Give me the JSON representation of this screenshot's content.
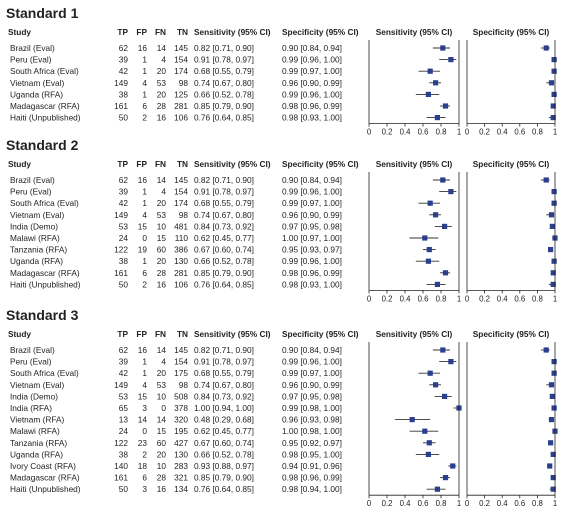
{
  "chart_data": [
    {
      "type": "forest",
      "title": "Standard 1",
      "columns": [
        "Study",
        "TP",
        "FP",
        "FN",
        "TN",
        "Sensitivity (95% CI)",
        "Specificity (95% CI)",
        "Sensitivity (95% CI)",
        "Specificity (95% CI)"
      ],
      "sens_axis": {
        "ticks": [
          "0",
          "0.2",
          "0.4",
          "0.6",
          "0.8",
          "1"
        ],
        "range": [
          0,
          1
        ]
      },
      "spec_axis": {
        "ticks": [
          "0",
          "0.2",
          "0.4",
          "0.6",
          "0.8",
          "1"
        ],
        "range": [
          0,
          1
        ]
      },
      "rows": [
        {
          "study": "Brazil (Eval)",
          "tp": 62,
          "fp": 16,
          "fn": 14,
          "tn": 145,
          "sens": [
            0.82,
            0.71,
            0.9
          ],
          "spec": [
            0.9,
            0.84,
            0.94
          ],
          "sens_text": "0.82 [0.71, 0.90]",
          "spec_text": "0.90 [0.84, 0.94]"
        },
        {
          "study": "Peru (Eval)",
          "tp": 39,
          "fp": 1,
          "fn": 4,
          "tn": 154,
          "sens": [
            0.91,
            0.78,
            0.97
          ],
          "spec": [
            0.99,
            0.96,
            1.0
          ],
          "sens_text": "0.91 [0.78, 0.97]",
          "spec_text": "0.99 [0.96, 1.00]"
        },
        {
          "study": "South Africa (Eval)",
          "tp": 42,
          "fp": 1,
          "fn": 20,
          "tn": 174,
          "sens": [
            0.68,
            0.55,
            0.79
          ],
          "spec": [
            0.99,
            0.97,
            1.0
          ],
          "sens_text": "0.68 [0.55, 0.79]",
          "spec_text": "0.99 [0.97, 1.00]"
        },
        {
          "study": "Vietnam (Eval)",
          "tp": 149,
          "fp": 4,
          "fn": 53,
          "tn": 98,
          "sens": [
            0.74,
            0.67,
            0.8
          ],
          "spec": [
            0.96,
            0.9,
            0.99
          ],
          "sens_text": "0.74 [0.67, 0.80]",
          "spec_text": "0.96 [0.90, 0.99]"
        },
        {
          "study": "Uganda (RFA)",
          "tp": 38,
          "fp": 1,
          "fn": 20,
          "tn": 125,
          "sens": [
            0.66,
            0.52,
            0.78
          ],
          "spec": [
            0.99,
            0.96,
            1.0
          ],
          "sens_text": "0.66 [0.52, 0.78]",
          "spec_text": "0.99 [0.96, 1.00]"
        },
        {
          "study": "Madagascar (RFA)",
          "tp": 161,
          "fp": 6,
          "fn": 28,
          "tn": 281,
          "sens": [
            0.85,
            0.79,
            0.9
          ],
          "spec": [
            0.98,
            0.96,
            0.99
          ],
          "sens_text": "0.85 [0.79, 0.90]",
          "spec_text": "0.98 [0.96, 0.99]"
        },
        {
          "study": "Haiti (Unpublished)",
          "tp": 50,
          "fp": 2,
          "fn": 16,
          "tn": 106,
          "sens": [
            0.76,
            0.64,
            0.85
          ],
          "spec": [
            0.98,
            0.93,
            1.0
          ],
          "sens_text": "0.76 [0.64, 0.85]",
          "spec_text": "0.98 [0.93, 1.00]"
        }
      ]
    },
    {
      "type": "forest",
      "title": "Standard 2",
      "columns": [
        "Study",
        "TP",
        "FP",
        "FN",
        "TN",
        "Sensitivity (95% CI)",
        "Specificity (95% CI)",
        "Sensitivity (95% CI)",
        "Specificity (95% CI)"
      ],
      "sens_axis": {
        "ticks": [
          "0",
          "0.2",
          "0.4",
          "0.6",
          "0.8",
          "1"
        ],
        "range": [
          0,
          1
        ]
      },
      "spec_axis": {
        "ticks": [
          "0",
          "0.2",
          "0.4",
          "0.6",
          "0.8",
          "1"
        ],
        "range": [
          0,
          1
        ]
      },
      "rows": [
        {
          "study": "Brazil (Eval)",
          "tp": 62,
          "fp": 16,
          "fn": 14,
          "tn": 145,
          "sens": [
            0.82,
            0.71,
            0.9
          ],
          "spec": [
            0.9,
            0.84,
            0.94
          ],
          "sens_text": "0.82 [0.71, 0.90]",
          "spec_text": "0.90 [0.84, 0.94]"
        },
        {
          "study": "Peru (Eval)",
          "tp": 39,
          "fp": 1,
          "fn": 4,
          "tn": 154,
          "sens": [
            0.91,
            0.78,
            0.97
          ],
          "spec": [
            0.99,
            0.96,
            1.0
          ],
          "sens_text": "0.91 [0.78, 0.97]",
          "spec_text": "0.99 [0.96, 1.00]"
        },
        {
          "study": "South Africa (Eval)",
          "tp": 42,
          "fp": 1,
          "fn": 20,
          "tn": 174,
          "sens": [
            0.68,
            0.55,
            0.79
          ],
          "spec": [
            0.99,
            0.97,
            1.0
          ],
          "sens_text": "0.68 [0.55, 0.79]",
          "spec_text": "0.99 [0.97, 1.00]"
        },
        {
          "study": "Vietnam (Eval)",
          "tp": 149,
          "fp": 4,
          "fn": 53,
          "tn": 98,
          "sens": [
            0.74,
            0.67,
            0.8
          ],
          "spec": [
            0.96,
            0.9,
            0.99
          ],
          "sens_text": "0.74 [0.67, 0.80]",
          "spec_text": "0.96 [0.90, 0.99]"
        },
        {
          "study": "India (Demo)",
          "tp": 53,
          "fp": 15,
          "fn": 10,
          "tn": 481,
          "sens": [
            0.84,
            0.73,
            0.92
          ],
          "spec": [
            0.97,
            0.95,
            0.98
          ],
          "sens_text": "0.84 [0.73, 0.92]",
          "spec_text": "0.97 [0.95, 0.98]"
        },
        {
          "study": "Malawi (RFA)",
          "tp": 24,
          "fp": 0,
          "fn": 15,
          "tn": 110,
          "sens": [
            0.62,
            0.45,
            0.77
          ],
          "spec": [
            1.0,
            0.97,
            1.0
          ],
          "sens_text": "0.62 [0.45, 0.77]",
          "spec_text": "1.00 [0.97, 1.00]"
        },
        {
          "study": "Tanzania (RFA)",
          "tp": 122,
          "fp": 19,
          "fn": 60,
          "tn": 386,
          "sens": [
            0.67,
            0.6,
            0.74
          ],
          "spec": [
            0.95,
            0.93,
            0.97
          ],
          "sens_text": "0.67 [0.60, 0.74]",
          "spec_text": "0.95 [0.93, 0.97]"
        },
        {
          "study": "Uganda (RFA)",
          "tp": 38,
          "fp": 1,
          "fn": 20,
          "tn": 130,
          "sens": [
            0.66,
            0.52,
            0.78
          ],
          "spec": [
            0.99,
            0.96,
            1.0
          ],
          "sens_text": "0.66 [0.52, 0.78]",
          "spec_text": "0.99 [0.96, 1.00]"
        },
        {
          "study": "Madagascar (RFA)",
          "tp": 161,
          "fp": 6,
          "fn": 28,
          "tn": 281,
          "sens": [
            0.85,
            0.79,
            0.9
          ],
          "spec": [
            0.98,
            0.96,
            0.99
          ],
          "sens_text": "0.85 [0.79, 0.90]",
          "spec_text": "0.98 [0.96, 0.99]"
        },
        {
          "study": "Haiti (Unpublished)",
          "tp": 50,
          "fp": 2,
          "fn": 16,
          "tn": 106,
          "sens": [
            0.76,
            0.64,
            0.85
          ],
          "spec": [
            0.98,
            0.93,
            1.0
          ],
          "sens_text": "0.76 [0.64, 0.85]",
          "spec_text": "0.98 [0.93, 1.00]"
        }
      ]
    },
    {
      "type": "forest",
      "title": "Standard 3",
      "columns": [
        "Study",
        "TP",
        "FP",
        "FN",
        "TN",
        "Sensitivity (95% CI)",
        "Specificity (95% CI)",
        "Sensitivity (95% CI)",
        "Specificity (95% CI)"
      ],
      "sens_axis": {
        "ticks": [
          "0",
          "0.2",
          "0.4",
          "0.6",
          "0.8",
          "1"
        ],
        "range": [
          0,
          1
        ]
      },
      "spec_axis": {
        "ticks": [
          "0",
          "0.2",
          "0.4",
          "0.6",
          "0.8",
          "1"
        ],
        "range": [
          0,
          1
        ]
      },
      "rows": [
        {
          "study": "Brazil (Eval)",
          "tp": 62,
          "fp": 16,
          "fn": 14,
          "tn": 145,
          "sens": [
            0.82,
            0.71,
            0.9
          ],
          "spec": [
            0.9,
            0.84,
            0.94
          ],
          "sens_text": "0.82 [0.71, 0.90]",
          "spec_text": "0.90 [0.84, 0.94]"
        },
        {
          "study": "Peru (Eval)",
          "tp": 39,
          "fp": 1,
          "fn": 4,
          "tn": 154,
          "sens": [
            0.91,
            0.78,
            0.97
          ],
          "spec": [
            0.99,
            0.96,
            1.0
          ],
          "sens_text": "0.91 [0.78, 0.97]",
          "spec_text": "0.99 [0.96, 1.00]"
        },
        {
          "study": "South Africa (Eval)",
          "tp": 42,
          "fp": 1,
          "fn": 20,
          "tn": 175,
          "sens": [
            0.68,
            0.55,
            0.79
          ],
          "spec": [
            0.99,
            0.97,
            1.0
          ],
          "sens_text": "0.68 [0.55, 0.79]",
          "spec_text": "0.99 [0.97, 1.00]"
        },
        {
          "study": "Vietnam (Eval)",
          "tp": 149,
          "fp": 4,
          "fn": 53,
          "tn": 98,
          "sens": [
            0.74,
            0.67,
            0.8
          ],
          "spec": [
            0.96,
            0.9,
            0.99
          ],
          "sens_text": "0.74 [0.67, 0.80]",
          "spec_text": "0.96 [0.90, 0.99]"
        },
        {
          "study": "India (Demo)",
          "tp": 53,
          "fp": 15,
          "fn": 10,
          "tn": 508,
          "sens": [
            0.84,
            0.73,
            0.92
          ],
          "spec": [
            0.97,
            0.95,
            0.98
          ],
          "sens_text": "0.84 [0.73, 0.92]",
          "spec_text": "0.97 [0.95, 0.98]"
        },
        {
          "study": "India (RFA)",
          "tp": 65,
          "fp": 3,
          "fn": 0,
          "tn": 378,
          "sens": [
            1.0,
            0.94,
            1.0
          ],
          "spec": [
            0.99,
            0.98,
            1.0
          ],
          "sens_text": "1.00 [0.94, 1.00]",
          "spec_text": "0.99 [0.98, 1.00]"
        },
        {
          "study": "Vietnam (RFA)",
          "tp": 13,
          "fp": 14,
          "fn": 14,
          "tn": 320,
          "sens": [
            0.48,
            0.29,
            0.68
          ],
          "spec": [
            0.96,
            0.93,
            0.98
          ],
          "sens_text": "0.48 [0.29, 0.68]",
          "spec_text": "0.96 [0.93, 0.98]"
        },
        {
          "study": "Malawi (RFA)",
          "tp": 24,
          "fp": 0,
          "fn": 15,
          "tn": 195,
          "sens": [
            0.62,
            0.45,
            0.77
          ],
          "spec": [
            1.0,
            0.98,
            1.0
          ],
          "sens_text": "0.62 [0.45, 0.77]",
          "spec_text": "1.00 [0.98, 1.00]"
        },
        {
          "study": "Tanzania (RFA)",
          "tp": 122,
          "fp": 23,
          "fn": 60,
          "tn": 427,
          "sens": [
            0.67,
            0.6,
            0.74
          ],
          "spec": [
            0.95,
            0.92,
            0.97
          ],
          "sens_text": "0.67 [0.60, 0.74]",
          "spec_text": "0.95 [0.92, 0.97]"
        },
        {
          "study": "Uganda (RFA)",
          "tp": 38,
          "fp": 2,
          "fn": 20,
          "tn": 130,
          "sens": [
            0.66,
            0.52,
            0.78
          ],
          "spec": [
            0.98,
            0.95,
            1.0
          ],
          "sens_text": "0.66 [0.52, 0.78]",
          "spec_text": "0.98 [0.95, 1.00]"
        },
        {
          "study": "Ivory Coast (RFA)",
          "tp": 140,
          "fp": 18,
          "fn": 10,
          "tn": 283,
          "sens": [
            0.93,
            0.88,
            0.97
          ],
          "spec": [
            0.94,
            0.91,
            0.96
          ],
          "sens_text": "0.93 [0.88, 0.97]",
          "spec_text": "0.94 [0.91, 0.96]"
        },
        {
          "study": "Madagascar (RFA)",
          "tp": 161,
          "fp": 6,
          "fn": 28,
          "tn": 321,
          "sens": [
            0.85,
            0.79,
            0.9
          ],
          "spec": [
            0.98,
            0.96,
            0.99
          ],
          "sens_text": "0.85 [0.79, 0.90]",
          "spec_text": "0.98 [0.96, 0.99]"
        },
        {
          "study": "Haiti (Unpublished)",
          "tp": 50,
          "fp": 3,
          "fn": 16,
          "tn": 134,
          "sens": [
            0.76,
            0.64,
            0.85
          ],
          "spec": [
            0.98,
            0.94,
            1.0
          ],
          "sens_text": "0.76 [0.64, 0.85]",
          "spec_text": "0.98 [0.94, 1.00]"
        }
      ]
    }
  ],
  "style": {
    "marker_color": "#2b3f8f",
    "text_color": "#222222",
    "axis_color": "#222222"
  }
}
